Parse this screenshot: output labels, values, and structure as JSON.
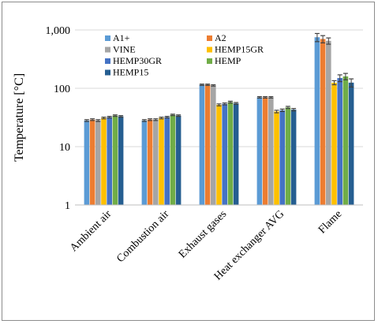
{
  "chart_data": {
    "type": "bar",
    "title": "",
    "xlabel": "",
    "ylabel": "Temperature [°C]",
    "yscale": "log",
    "ylim": [
      1,
      1000
    ],
    "yticks": [
      "1",
      "10",
      "100",
      "1,000"
    ],
    "grid": "horizontal",
    "legend_position": "top-left-inside",
    "categories": [
      "Ambient air",
      "Combustion air",
      "Exhaust gases",
      "Heat exchanger AVG",
      "Flame"
    ],
    "series": [
      {
        "name": "A1+",
        "color": "#5b9bd5",
        "values": [
          28,
          28,
          115,
          70,
          750
        ],
        "errors": [
          1,
          1,
          3,
          2,
          120
        ]
      },
      {
        "name": "A2",
        "color": "#ed7d31",
        "values": [
          29,
          29,
          115,
          70,
          700
        ],
        "errors": [
          1,
          1,
          3,
          2,
          100
        ]
      },
      {
        "name": "VINE",
        "color": "#a5a5a5",
        "values": [
          28,
          29,
          112,
          70,
          650
        ],
        "errors": [
          1,
          1,
          3,
          2,
          80
        ]
      },
      {
        "name": "HEMP15GR",
        "color": "#ffc000",
        "values": [
          31,
          31,
          52,
          40,
          125
        ],
        "errors": [
          1,
          1,
          2,
          2,
          10
        ]
      },
      {
        "name": "HEMP30GR",
        "color": "#4472c4",
        "values": [
          32,
          32,
          54,
          42,
          150
        ],
        "errors": [
          1,
          1,
          2,
          2,
          20
        ]
      },
      {
        "name": "HEMP",
        "color": "#70ad47",
        "values": [
          34,
          35,
          58,
          47,
          160
        ],
        "errors": [
          1,
          1,
          2,
          2,
          20
        ]
      },
      {
        "name": "HEMP15",
        "color": "#255e91",
        "values": [
          33,
          34,
          55,
          43,
          125
        ],
        "errors": [
          1,
          1,
          2,
          2,
          20
        ]
      }
    ]
  }
}
